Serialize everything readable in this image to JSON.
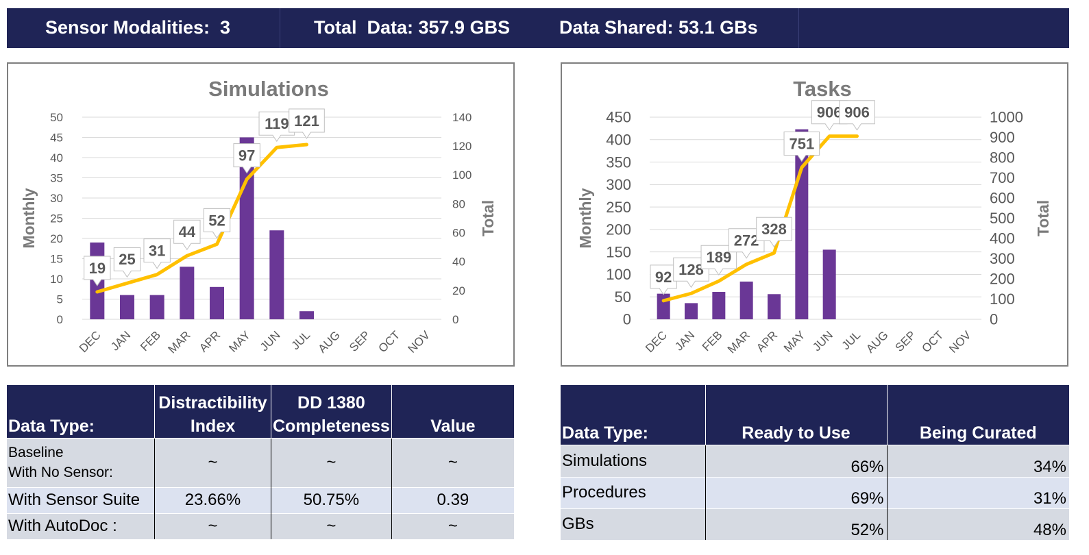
{
  "header": {
    "modalities": "Sensor Modalities:  3",
    "total_data": "Total  Data: 357.9 GBS",
    "data_shared": "Data Shared: 53.1 GBs"
  },
  "colors": {
    "navy": "#1f2456",
    "bar": "#6a3796",
    "line": "#ffc000"
  },
  "chart_data": [
    {
      "type": "bar",
      "title": "Simulations",
      "categories": [
        "DEC",
        "JAN",
        "FEB",
        "MAR",
        "APR",
        "MAY",
        "JUN",
        "JUL",
        "AUG",
        "SEP",
        "OCT",
        "NOV"
      ],
      "ylabel": "Monthly",
      "y2label": "Total",
      "ylim": [
        0,
        50
      ],
      "yticks": [
        0,
        5,
        10,
        15,
        20,
        25,
        30,
        35,
        40,
        45,
        50
      ],
      "y2lim": [
        0,
        140
      ],
      "y2ticks": [
        0,
        20,
        40,
        60,
        80,
        100,
        120,
        140
      ],
      "grid": true,
      "series": [
        {
          "type": "bar",
          "axis": "left",
          "values": [
            19,
            6,
            6,
            13,
            8,
            45,
            22,
            2,
            null,
            null,
            null,
            null
          ]
        },
        {
          "type": "line",
          "axis": "right",
          "values": [
            19,
            25,
            31,
            44,
            52,
            97,
            119,
            121,
            null,
            null,
            null,
            null
          ]
        }
      ],
      "data_labels": [
        "19",
        "25",
        "31",
        "44",
        "52",
        "97",
        "119",
        "121"
      ]
    },
    {
      "type": "bar",
      "title": "Tasks",
      "categories": [
        "DEC",
        "JAN",
        "FEB",
        "MAR",
        "APR",
        "MAY",
        "JUN",
        "JUL",
        "AUG",
        "SEP",
        "OCT",
        "NOV"
      ],
      "ylabel": "Monthly",
      "y2label": "Total",
      "ylim": [
        0,
        450
      ],
      "yticks": [
        0,
        50,
        100,
        150,
        200,
        250,
        300,
        350,
        400,
        450
      ],
      "y2lim": [
        0,
        1000
      ],
      "y2ticks": [
        0,
        100,
        200,
        300,
        400,
        500,
        600,
        700,
        800,
        900,
        1000
      ],
      "grid": true,
      "series": [
        {
          "type": "bar",
          "axis": "left",
          "values": [
            57,
            36,
            61,
            84,
            56,
            423,
            155,
            null,
            null,
            null,
            null,
            null
          ]
        },
        {
          "type": "line",
          "axis": "right",
          "values": [
            92,
            128,
            189,
            272,
            328,
            751,
            906,
            906,
            null,
            null,
            null,
            null
          ]
        }
      ],
      "data_labels": [
        "92",
        "128",
        "189",
        "272",
        "328",
        "751",
        "906",
        "906"
      ]
    }
  ],
  "table_left": {
    "headers": [
      "Data Type:",
      "Distractibility Index",
      "DD 1380 Completeness",
      "Value"
    ],
    "rows": [
      [
        "Baseline\nWith No Sensor:",
        "~",
        "~",
        "~"
      ],
      [
        "With Sensor Suite",
        "23.66%",
        "50.75%",
        "0.39"
      ],
      [
        "With AutoDoc :",
        "~",
        "~",
        "~"
      ]
    ]
  },
  "table_right": {
    "headers": [
      "Data Type:",
      "Ready to Use",
      "Being Curated"
    ],
    "rows": [
      [
        "Simulations",
        "66%",
        "34%"
      ],
      [
        "Procedures",
        "69%",
        "31%"
      ],
      [
        "GBs",
        "52%",
        "48%"
      ]
    ]
  }
}
